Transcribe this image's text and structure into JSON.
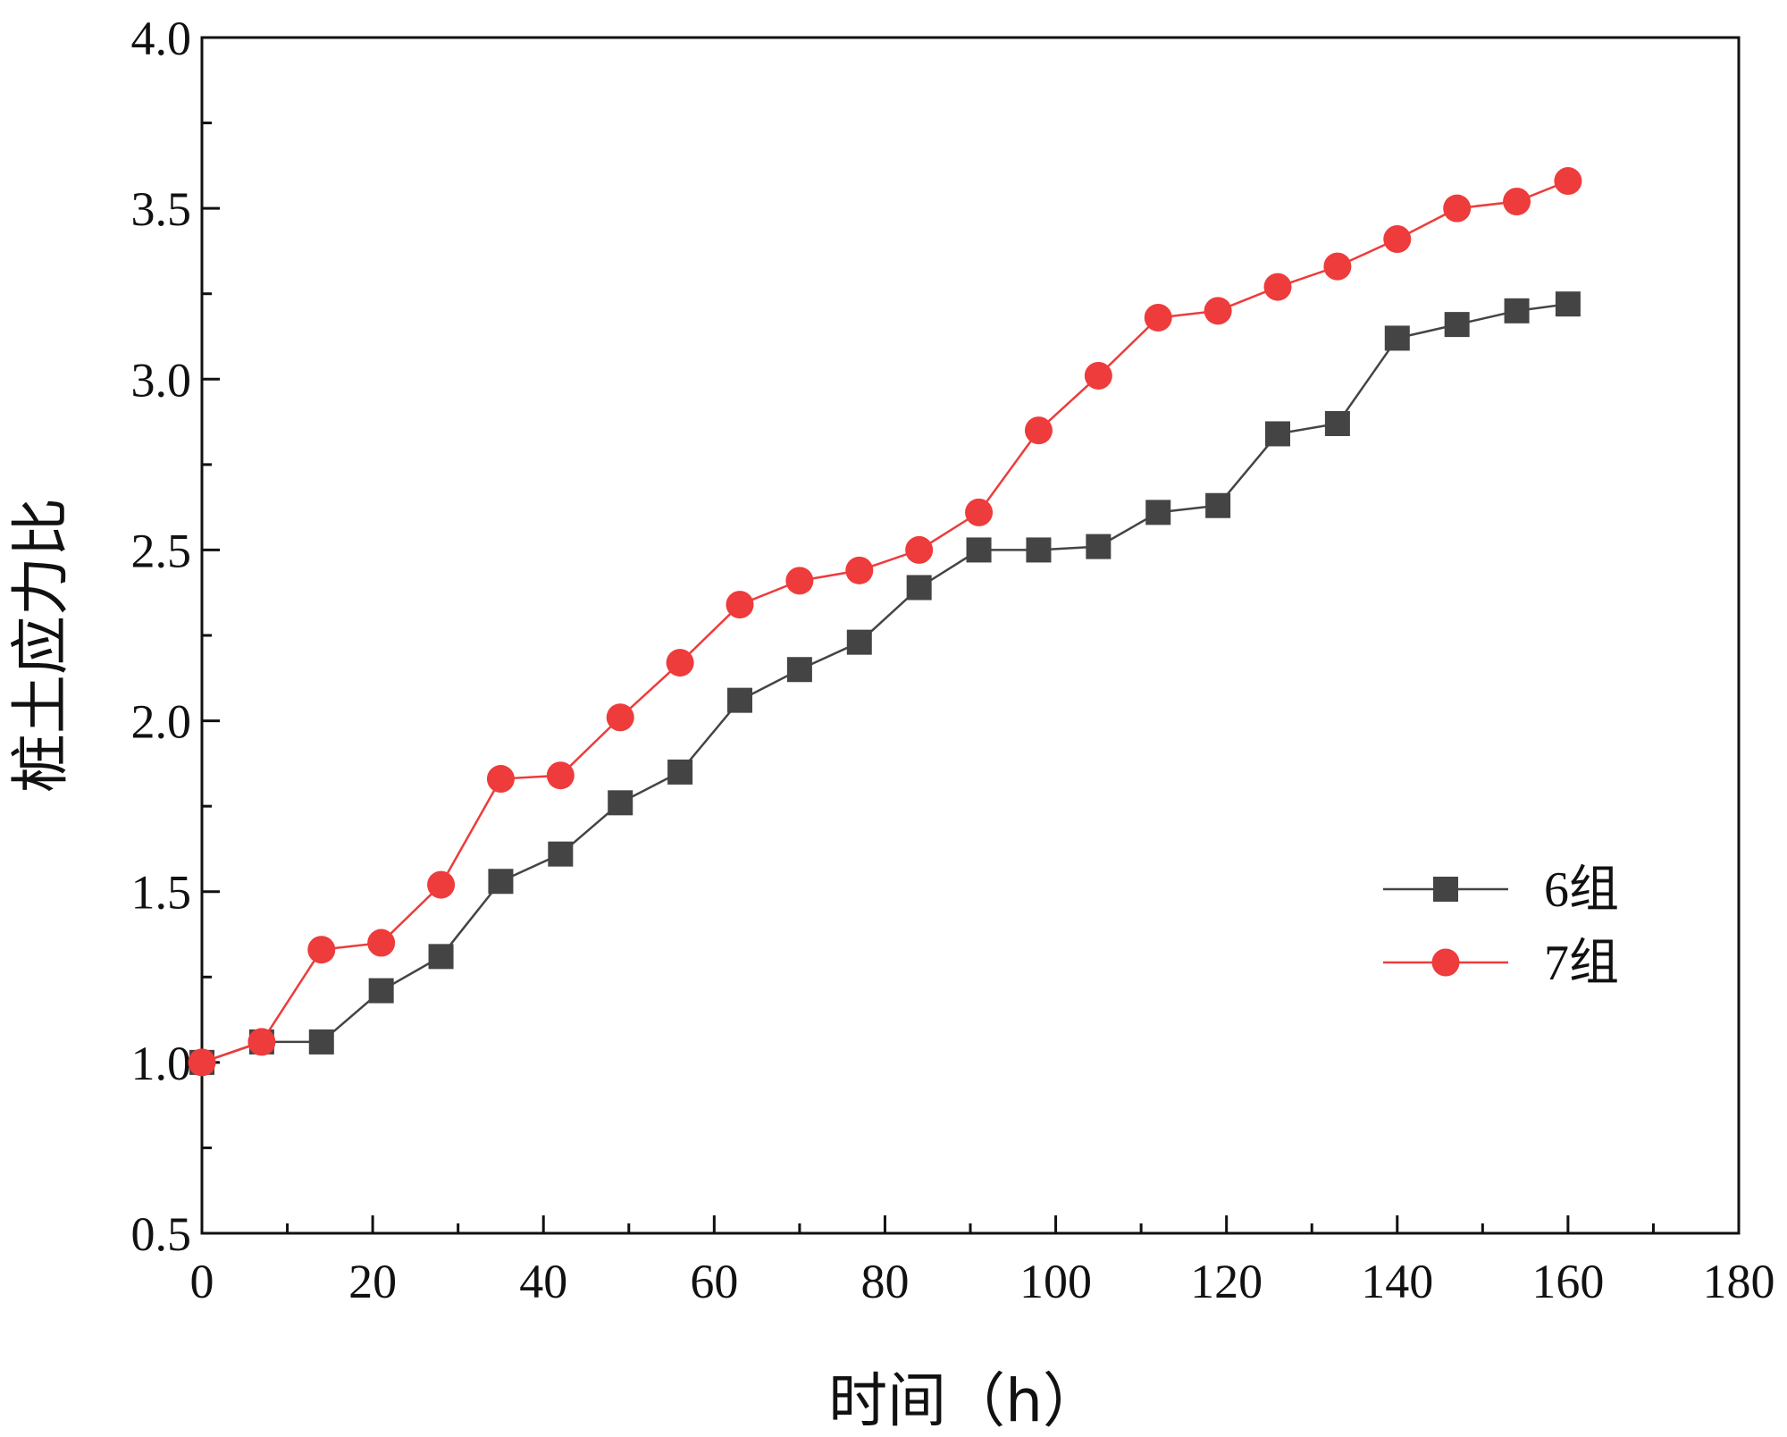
{
  "chart_data": {
    "type": "line",
    "title": "",
    "xlabel": "时间（h）",
    "ylabel": "桩土应力比",
    "xlim": [
      0,
      180
    ],
    "ylim": [
      0.5,
      4.0
    ],
    "x_ticks": [
      0,
      20,
      40,
      60,
      80,
      100,
      120,
      140,
      160,
      180
    ],
    "x_tick_labels": [
      "0",
      "20",
      "40",
      "60",
      "80",
      "100",
      "120",
      "140",
      "160",
      "180"
    ],
    "y_ticks": [
      0.5,
      1.0,
      1.5,
      2.0,
      2.5,
      3.0,
      3.5,
      4.0
    ],
    "y_tick_labels": [
      "0.5",
      "1.0",
      "1.5",
      "2.0",
      "2.5",
      "3.0",
      "3.5",
      "4.0"
    ],
    "grid": false,
    "legend_position": "right",
    "series": [
      {
        "name": "6组",
        "marker": "square",
        "color": "#444444",
        "x": [
          0,
          7,
          14,
          21,
          28,
          35,
          42,
          49,
          56,
          63,
          70,
          77,
          84,
          91,
          98,
          105,
          112,
          119,
          126,
          133,
          140,
          147,
          154,
          160
        ],
        "values": [
          1.0,
          1.06,
          1.06,
          1.21,
          1.31,
          1.53,
          1.61,
          1.76,
          1.85,
          2.06,
          2.15,
          2.23,
          2.39,
          2.5,
          2.5,
          2.51,
          2.61,
          2.63,
          2.84,
          2.87,
          3.12,
          3.16,
          3.2,
          3.22
        ]
      },
      {
        "name": "7组",
        "marker": "circle",
        "color": "#ee3b3b",
        "x": [
          0,
          7,
          14,
          21,
          28,
          35,
          42,
          49,
          56,
          63,
          70,
          77,
          84,
          91,
          98,
          105,
          112,
          119,
          126,
          133,
          140,
          147,
          154,
          160
        ],
        "values": [
          1.0,
          1.06,
          1.33,
          1.35,
          1.52,
          1.83,
          1.84,
          2.01,
          2.17,
          2.34,
          2.41,
          2.44,
          2.5,
          2.61,
          2.85,
          3.01,
          3.18,
          3.2,
          3.27,
          3.33,
          3.41,
          3.5,
          3.52,
          3.58
        ]
      }
    ]
  }
}
